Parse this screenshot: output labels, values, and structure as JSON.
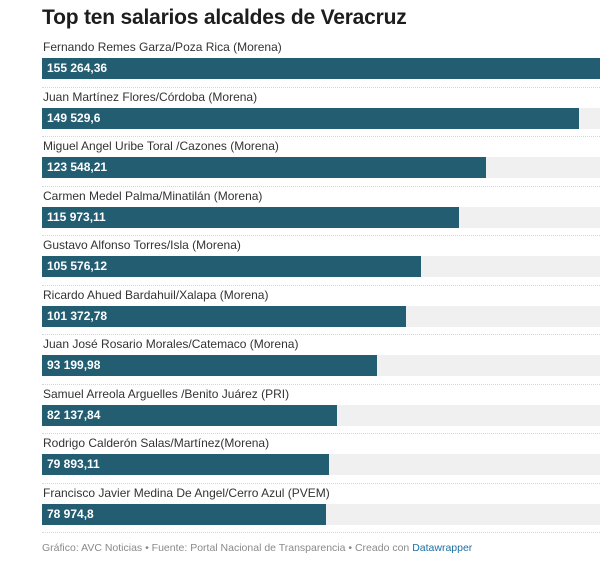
{
  "title": "Top ten salarios alcaldes de Veracruz",
  "footer": {
    "text": "Gráfico: AVC Noticias • Fuente: Portal Nacional de Transparencia • Creado con",
    "link": "Datawrapper"
  },
  "colors": {
    "bar": "#225d72",
    "track": "#f0f0f0"
  },
  "chart_data": {
    "type": "bar",
    "orientation": "horizontal",
    "title": "Top ten salarios alcaldes de Veracruz",
    "xlim": [
      0,
      155264.36
    ],
    "grid": false,
    "categories": [
      "Fernando Remes Garza/Poza Rica (Morena)",
      " Juan Martínez Flores/Córdoba (Morena)",
      "Miguel Angel Uribe Toral /Cazones (Morena)",
      "Carmen Medel Palma/Minatilán (Morena)",
      "Gustavo Alfonso Torres/Isla (Morena)",
      "Ricardo Ahued Bardahuil/Xalapa (Morena)",
      "Juan José Rosario Morales/Catemaco (Morena)",
      "Samuel Arreola Arguelles /Benito Juárez (PRI)",
      "Rodrigo Calderón Salas/Martínez(Morena)",
      "Francisco Javier Medina De Angel/Cerro Azul (PVEM)"
    ],
    "values": [
      155264.36,
      149529.6,
      123548.21,
      115973.11,
      105576.12,
      101372.78,
      93199.98,
      82137.84,
      79893.11,
      78974.8
    ],
    "value_labels": [
      "155 264,36",
      "149 529,6",
      "123 548,21",
      "115 973,11",
      "105 576,12",
      "101 372,78",
      "93 199,98",
      "82 137,84",
      "79 893,11",
      "78 974,8"
    ]
  }
}
